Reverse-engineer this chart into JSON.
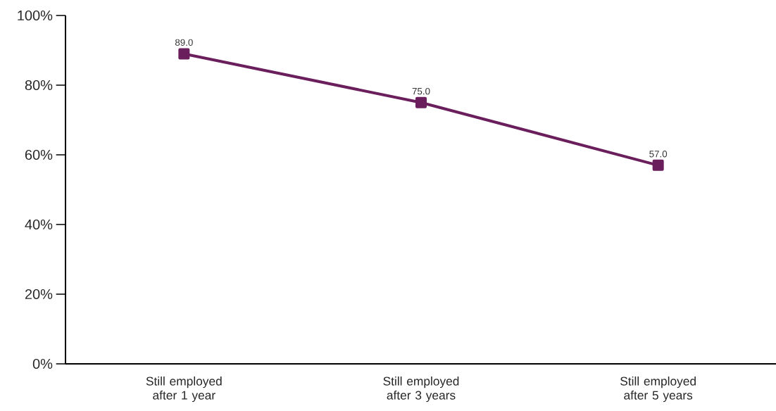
{
  "chart_data": {
    "type": "line",
    "categories": [
      "Still employed after 1 year",
      "Still employed after 3 years",
      "Still employed after 5 years"
    ],
    "series": [
      {
        "color": "#6a1f5c",
        "values": [
          89.0,
          75.0,
          57.0
        ],
        "value_labels": [
          "89.0",
          "75.0",
          "57.0"
        ]
      }
    ],
    "ylim": [
      0,
      100
    ],
    "yticks": [
      {
        "value": 0,
        "label": "0%"
      },
      {
        "value": 20,
        "label": "20%"
      },
      {
        "value": 40,
        "label": "40%"
      },
      {
        "value": 60,
        "label": "60%"
      },
      {
        "value": 80,
        "label": "80%"
      },
      {
        "value": 100,
        "label": "100%"
      }
    ],
    "grid": false,
    "legend": false,
    "marker": "square",
    "line_style": "solid"
  }
}
